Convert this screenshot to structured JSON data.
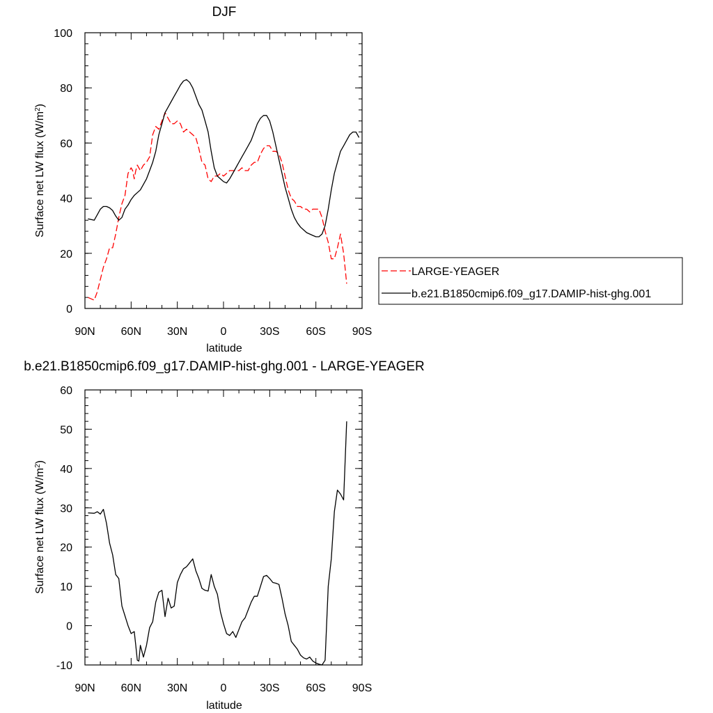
{
  "chart_data": [
    {
      "type": "line",
      "title": "DJF",
      "xlabel": "latitude",
      "ylabel": "Surface net LW flux (W/m",
      "ylabel_sup": "2",
      "ylabel_close": ")",
      "xlim": [
        90,
        -90
      ],
      "ylim": [
        0,
        100
      ],
      "xticks": [
        90,
        60,
        30,
        0,
        -30,
        -60,
        -90
      ],
      "xtick_labels": [
        "90N",
        "60N",
        "30N",
        "0",
        "30S",
        "60S",
        "90S"
      ],
      "yticks": [
        0,
        20,
        40,
        60,
        80,
        100
      ],
      "ytick_labels": [
        "0",
        "20",
        "40",
        "60",
        "80",
        "100"
      ],
      "legend": "right",
      "series": [
        {
          "name": "LARGE-YEAGER",
          "color": "#ff0000",
          "dash": "dashed",
          "x": [
            88,
            84,
            82,
            78,
            76,
            74,
            72,
            70,
            68,
            66,
            64,
            62,
            60,
            59,
            58,
            57,
            56,
            54,
            52,
            50,
            48,
            46,
            44,
            42,
            40,
            38,
            36,
            34,
            32,
            30,
            28,
            26,
            24,
            22,
            20,
            18,
            16,
            14,
            12,
            10,
            8,
            6,
            4,
            2,
            0,
            -2,
            -4,
            -6,
            -8,
            -10,
            -12,
            -14,
            -16,
            -18,
            -20,
            -22,
            -24,
            -26,
            -28,
            -30,
            -32,
            -34,
            -36,
            -38,
            -40,
            -42,
            -44,
            -46,
            -48,
            -50,
            -52,
            -54,
            -56,
            -58,
            -60,
            -62,
            -64,
            -66,
            -68,
            -70,
            -72,
            -74,
            -76,
            -78,
            -80
          ],
          "y": [
            4,
            3,
            6,
            15,
            18,
            22,
            22,
            27,
            33,
            38,
            41,
            49,
            51,
            50,
            47,
            50,
            52,
            50,
            52,
            53,
            55,
            63,
            66,
            65,
            68,
            71,
            69,
            67,
            67,
            68,
            67,
            64,
            65,
            64,
            63,
            62,
            58,
            53,
            52,
            47,
            46,
            48,
            48,
            49,
            48,
            49,
            50,
            50,
            50,
            50,
            51,
            50,
            50,
            52,
            53,
            53,
            56,
            58,
            59,
            59,
            57,
            57,
            56,
            53,
            48,
            43,
            40,
            39,
            37,
            37,
            36,
            36,
            35,
            36,
            36,
            36,
            33,
            28,
            24,
            18,
            18,
            22,
            27,
            20,
            9
          ]
        },
        {
          "name": "b.e21.B1850cmip6.f09_g17.DAMIP-hist-ghg.001",
          "color": "#000000",
          "dash": "solid",
          "x": [
            88,
            84,
            82,
            80,
            78,
            76,
            74,
            72,
            70,
            68,
            66,
            64,
            62,
            60,
            58,
            56,
            54,
            52,
            50,
            48,
            46,
            44,
            42,
            40,
            38,
            36,
            34,
            32,
            30,
            28,
            26,
            24,
            22,
            20,
            18,
            16,
            14,
            12,
            10,
            8,
            6,
            4,
            2,
            0,
            -2,
            -4,
            -6,
            -8,
            -10,
            -12,
            -14,
            -16,
            -18,
            -20,
            -22,
            -24,
            -26,
            -28,
            -30,
            -32,
            -34,
            -36,
            -38,
            -40,
            -42,
            -44,
            -46,
            -48,
            -50,
            -52,
            -54,
            -56,
            -58,
            -60,
            -62,
            -64,
            -66,
            -68,
            -70,
            -72,
            -74,
            -76,
            -78,
            -80,
            -82,
            -84,
            -86,
            -88
          ],
          "y": [
            32.5,
            32,
            34,
            36,
            37,
            37,
            36.5,
            35.5,
            33.5,
            32,
            33,
            36,
            37.5,
            39.5,
            41,
            42,
            43,
            45,
            47,
            50,
            53,
            57,
            63,
            67,
            71,
            73,
            75,
            77,
            79,
            81,
            82.5,
            83,
            82,
            80,
            77,
            74,
            72,
            68,
            64,
            57,
            51,
            48,
            47,
            46,
            45.5,
            47,
            49,
            51,
            53,
            55,
            57,
            59,
            61,
            64,
            67,
            69,
            70,
            70,
            68,
            64,
            59,
            54,
            49,
            44,
            40,
            36,
            33,
            31,
            29.5,
            28.5,
            27.5,
            27,
            26.5,
            26,
            26,
            27,
            30,
            36,
            43,
            49,
            53,
            57,
            59,
            61,
            63,
            64,
            64,
            62
          ]
        }
      ]
    },
    {
      "type": "line",
      "title": "b.e21.B1850cmip6.f09_g17.DAMIP-hist-ghg.001 - LARGE-YEAGER",
      "xlabel": "latitude",
      "ylabel": "Surface net LW flux (W/m",
      "ylabel_sup": "2",
      "ylabel_close": ")",
      "xlim": [
        90,
        -90
      ],
      "ylim": [
        -10,
        60
      ],
      "xticks": [
        90,
        60,
        30,
        0,
        -30,
        -60,
        -90
      ],
      "xtick_labels": [
        "90N",
        "60N",
        "30N",
        "0",
        "30S",
        "60S",
        "90S"
      ],
      "yticks": [
        -10,
        0,
        10,
        20,
        30,
        40,
        50,
        60
      ],
      "ytick_labels": [
        "-10",
        "0",
        "10",
        "20",
        "30",
        "40",
        "50",
        "60"
      ],
      "series": [
        {
          "color": "#000000",
          "dash": "solid",
          "x": [
            88,
            84,
            82,
            80,
            78,
            76,
            74,
            72,
            70,
            68,
            66,
            64,
            62,
            60,
            58,
            57,
            56,
            55,
            54,
            52,
            50,
            48,
            46,
            44,
            42,
            40,
            38,
            36,
            34,
            32,
            30,
            28,
            26,
            24,
            22,
            20,
            18,
            16,
            14,
            12,
            10,
            8,
            6,
            4,
            2,
            0,
            -2,
            -4,
            -6,
            -8,
            -10,
            -12,
            -14,
            -16,
            -18,
            -20,
            -22,
            -24,
            -26,
            -28,
            -30,
            -32,
            -34,
            -36,
            -38,
            -40,
            -42,
            -44,
            -46,
            -48,
            -50,
            -52,
            -54,
            -56,
            -58,
            -60,
            -62,
            -64,
            -66,
            -68,
            -70,
            -72,
            -74,
            -76,
            -78,
            -80
          ],
          "y": [
            28.7,
            28.6,
            29,
            28.4,
            29.6,
            26,
            21,
            18,
            13,
            12,
            5,
            2.5,
            0,
            -2,
            -1.5,
            -5,
            -8.8,
            -9,
            -5,
            -8,
            -5,
            -0.5,
            1,
            6,
            8.5,
            9,
            2.3,
            7,
            4.5,
            5,
            11,
            13,
            14.5,
            15,
            16,
            17,
            14,
            12,
            9.5,
            9,
            8.8,
            13,
            10,
            8,
            3.5,
            0.5,
            -2,
            -2.5,
            -1.5,
            -3,
            -1,
            1,
            2,
            4,
            6,
            7.5,
            7.5,
            10,
            12.5,
            12.8,
            12,
            11,
            10.8,
            10.5,
            7,
            3,
            0,
            -4,
            -5,
            -6,
            -7.5,
            -8.2,
            -8.5,
            -8,
            -9,
            -9.5,
            -9.8,
            -10,
            -8.8,
            10,
            17,
            29,
            34.5,
            33.5,
            32,
            52
          ]
        }
      ]
    }
  ]
}
